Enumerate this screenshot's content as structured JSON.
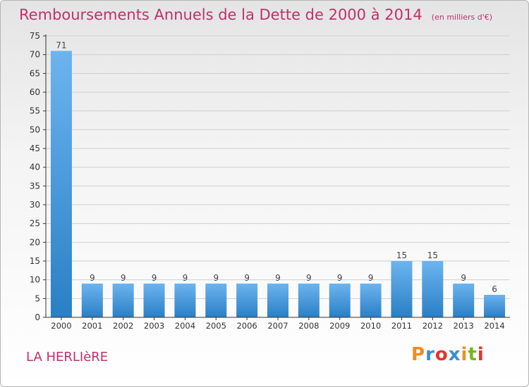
{
  "header": {
    "title": "Remboursements Annuels de la Dette de 2000 à 2014",
    "unit": "(en milliers d'€)"
  },
  "footer": {
    "commune": "LA HERLIèRE",
    "logo_text": "Proxiti",
    "logo_colors": [
      "#f28c1e",
      "#3a8dd6",
      "#e8322c",
      "#3a8dd6",
      "#f28c1e",
      "#7ab51d",
      "#e8322c"
    ]
  },
  "colors": {
    "bar_top": "#6cb4ef",
    "bar_bottom": "#2a7fc5",
    "grid": "#cfcfcf",
    "axis": "#333333",
    "title": "#c0306a"
  },
  "chart_data": {
    "type": "bar",
    "title": "Remboursements Annuels de la Dette de 2000 à 2014",
    "subtitle": "(en milliers d'€)",
    "xlabel": "",
    "ylabel": "",
    "categories": [
      "2000",
      "2001",
      "2002",
      "2003",
      "2004",
      "2005",
      "2006",
      "2007",
      "2008",
      "2009",
      "2010",
      "2011",
      "2012",
      "2013",
      "2014"
    ],
    "values": [
      71,
      9,
      9,
      9,
      9,
      9,
      9,
      9,
      9,
      9,
      9,
      15,
      15,
      9,
      6
    ],
    "ylim": [
      0,
      75
    ],
    "yticks": [
      0,
      5,
      10,
      15,
      20,
      25,
      30,
      35,
      40,
      45,
      50,
      55,
      60,
      65,
      70,
      75
    ],
    "grid": true,
    "legend": "none",
    "data_labels": true
  }
}
